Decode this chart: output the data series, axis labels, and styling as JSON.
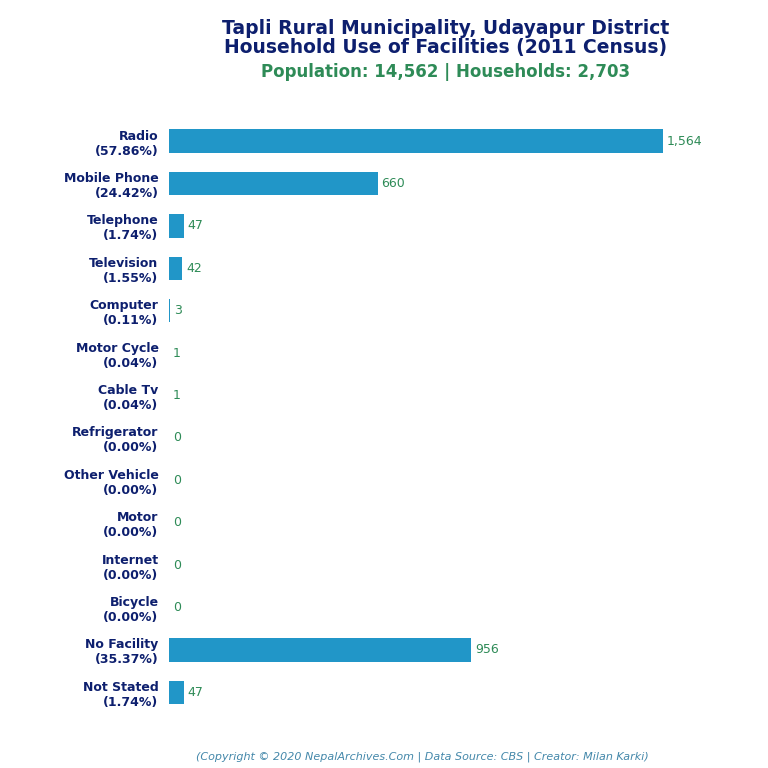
{
  "title_line1": "Tapli Rural Municipality, Udayapur District",
  "title_line2": "Household Use of Facilities (2011 Census)",
  "subtitle": "Population: 14,562 | Households: 2,703",
  "footer": "(Copyright © 2020 NepalArchives.Com | Data Source: CBS | Creator: Milan Karki)",
  "categories": [
    "Radio\n(57.86%)",
    "Mobile Phone\n(24.42%)",
    "Telephone\n(1.74%)",
    "Television\n(1.55%)",
    "Computer\n(0.11%)",
    "Motor Cycle\n(0.04%)",
    "Cable Tv\n(0.04%)",
    "Refrigerator\n(0.00%)",
    "Other Vehicle\n(0.00%)",
    "Motor\n(0.00%)",
    "Internet\n(0.00%)",
    "Bicycle\n(0.00%)",
    "No Facility\n(35.37%)",
    "Not Stated\n(1.74%)"
  ],
  "values": [
    1564,
    660,
    47,
    42,
    3,
    1,
    1,
    0,
    0,
    0,
    0,
    0,
    956,
    47
  ],
  "bar_color": "#2196C8",
  "value_color": "#2E8B57",
  "title_color": "#0D1F6E",
  "subtitle_color": "#2E8B57",
  "footer_color": "#4488AA",
  "background_color": "#ffffff",
  "xlim": [
    0,
    1750
  ]
}
